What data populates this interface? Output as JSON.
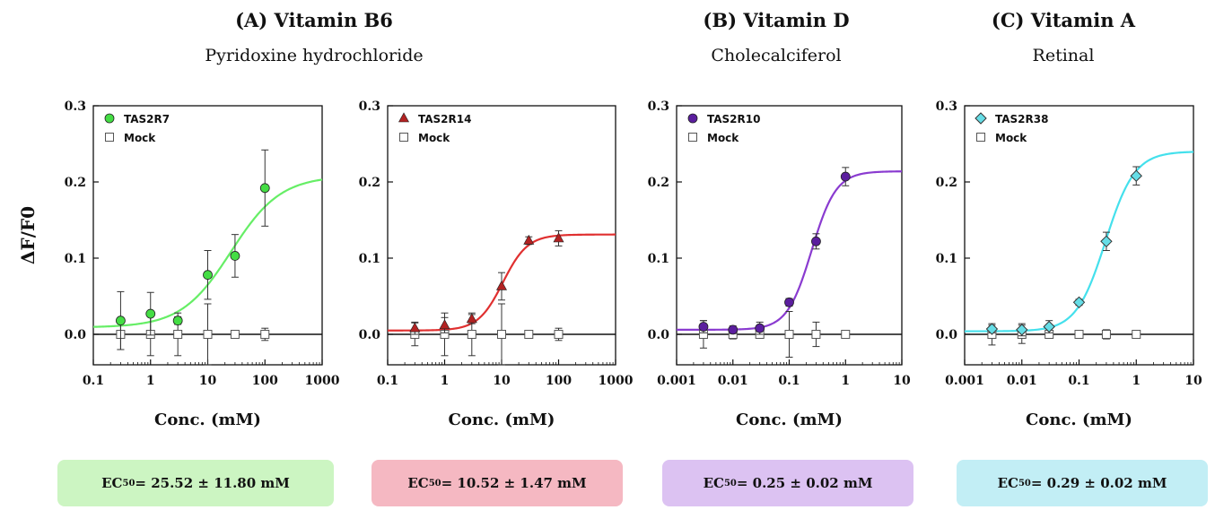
{
  "headers": [
    {
      "title": "(A) Vitamin B6",
      "subtitle": "Pyridoxine hydrochloride"
    },
    {
      "title": "(B) Vitamin D",
      "subtitle": "Cholecalciferol"
    },
    {
      "title": "(C) Vitamin A",
      "subtitle": "Retinal"
    }
  ],
  "ylabel": "ΔF/F0",
  "ec50": [
    {
      "prefix": "EC",
      "sub": "50",
      "text": " = 25.52 ± 11.80 mM",
      "color": "#ccf5c2"
    },
    {
      "prefix": "EC",
      "sub": "50",
      "text": " = 10.52 ± 1.47 mM",
      "color": "#f5b8c2"
    },
    {
      "prefix": "EC",
      "sub": "50",
      "text": " = 0.25 ± 0.02 mM",
      "color": "#dcc2f2"
    },
    {
      "prefix": "EC",
      "sub": "50",
      "text": " = 0.29 ± 0.02 mM",
      "color": "#c2eef5"
    }
  ],
  "chart_data": [
    {
      "type": "scatter",
      "xscale": "log",
      "xlim": [
        0.1,
        1000
      ],
      "ylim": [
        -0.04,
        0.3
      ],
      "xticks": [
        "0.1",
        "1",
        "10",
        "100",
        "1000"
      ],
      "yticks": [
        "0.0",
        "0.1",
        "0.2",
        "0.3"
      ],
      "xlabel": "Conc. (mM)",
      "ylabel": "ΔF/F0",
      "series": [
        {
          "name": "TAS2R7",
          "color": "#44dd44",
          "fit_color": "#66ee66",
          "marker": "circle",
          "x": [
            0.3,
            1,
            3,
            10,
            30,
            100
          ],
          "y": [
            0.018,
            0.027,
            0.018,
            0.078,
            0.103,
            0.192
          ],
          "err": [
            0.038,
            0.028,
            0.005,
            0.032,
            0.028,
            0.05
          ],
          "fit": {
            "bottom": 0.009,
            "top": 0.208,
            "ec50": 25.52,
            "hill": 1.0
          }
        },
        {
          "name": "Mock",
          "color": "#ffffff",
          "marker": "square",
          "x": [
            0.3,
            1,
            3,
            10,
            30,
            100
          ],
          "y": [
            0,
            0,
            0,
            0,
            0,
            0
          ],
          "err": [
            0.02,
            0.028,
            0.028,
            0.04,
            0.003,
            0.008
          ]
        }
      ]
    },
    {
      "type": "scatter",
      "xscale": "log",
      "xlim": [
        0.1,
        1000
      ],
      "ylim": [
        -0.04,
        0.3
      ],
      "xticks": [
        "0.1",
        "1",
        "10",
        "100",
        "1000"
      ],
      "yticks": [
        "0.0",
        "0.1",
        "0.2",
        "0.3"
      ],
      "xlabel": "Conc. (mM)",
      "series": [
        {
          "name": "TAS2R14",
          "color": "#b22222",
          "fit_color": "#e03030",
          "marker": "triangle",
          "x": [
            0.3,
            1,
            3,
            10,
            30,
            100
          ],
          "y": [
            0.008,
            0.012,
            0.02,
            0.063,
            0.123,
            0.126
          ],
          "err": [
            0.008,
            0.01,
            0.006,
            0.018,
            0.005,
            0.01
          ],
          "fit": {
            "bottom": 0.005,
            "top": 0.131,
            "ec50": 10.52,
            "hill": 2.0
          }
        },
        {
          "name": "Mock",
          "color": "#ffffff",
          "marker": "square",
          "x": [
            0.3,
            1,
            3,
            10,
            30,
            100
          ],
          "y": [
            0,
            0,
            0,
            0,
            0,
            0
          ],
          "err": [
            0.015,
            0.028,
            0.028,
            0.04,
            0.003,
            0.008
          ]
        }
      ]
    },
    {
      "type": "scatter",
      "xscale": "log",
      "xlim": [
        0.001,
        10
      ],
      "ylim": [
        -0.04,
        0.3
      ],
      "xticks": [
        "0.001",
        "0.01",
        "0.1",
        "1",
        "10"
      ],
      "yticks": [
        "0.0",
        "0.1",
        "0.2",
        "0.3"
      ],
      "xlabel": "Conc. (mM)",
      "series": [
        {
          "name": "TAS2R10",
          "color": "#5b1e9e",
          "fit_color": "#8a3bd0",
          "marker": "circle",
          "x": [
            0.003,
            0.01,
            0.03,
            0.1,
            0.3,
            1
          ],
          "y": [
            0.01,
            0.006,
            0.008,
            0.042,
            0.122,
            0.207
          ],
          "err": [
            0.008,
            0.005,
            0.008,
            0.005,
            0.01,
            0.012
          ],
          "fit": {
            "bottom": 0.006,
            "top": 0.214,
            "ec50": 0.25,
            "hill": 2.0
          }
        },
        {
          "name": "Mock",
          "color": "#ffffff",
          "marker": "square",
          "x": [
            0.003,
            0.01,
            0.03,
            0.1,
            0.3,
            1
          ],
          "y": [
            0,
            0,
            0,
            0,
            0,
            0
          ],
          "err": [
            0.018,
            0.006,
            0.003,
            0.03,
            0.016,
            0.003
          ]
        }
      ]
    },
    {
      "type": "scatter",
      "xscale": "log",
      "xlim": [
        0.001,
        10
      ],
      "ylim": [
        -0.04,
        0.3
      ],
      "xticks": [
        "0.001",
        "0.01",
        "0.1",
        "1",
        "10"
      ],
      "yticks": [
        "0.0",
        "0.1",
        "0.2",
        "0.3"
      ],
      "xlabel": "Conc. (mM)",
      "series": [
        {
          "name": "TAS2R38",
          "color": "#66dde6",
          "fit_color": "#44e0ec",
          "marker": "diamond",
          "x": [
            0.003,
            0.01,
            0.03,
            0.1,
            0.3,
            1
          ],
          "y": [
            0.007,
            0.006,
            0.01,
            0.042,
            0.122,
            0.208
          ],
          "err": [
            0.005,
            0.008,
            0.008,
            0.004,
            0.012,
            0.012
          ],
          "fit": {
            "bottom": 0.004,
            "top": 0.24,
            "ec50": 0.29,
            "hill": 1.7
          }
        },
        {
          "name": "Mock",
          "color": "#ffffff",
          "marker": "square",
          "x": [
            0.003,
            0.01,
            0.03,
            0.1,
            0.3,
            1
          ],
          "y": [
            0,
            0,
            0,
            0,
            0,
            0
          ],
          "err": [
            0.014,
            0.012,
            0.003,
            0.003,
            0.006,
            0.003
          ]
        }
      ]
    }
  ]
}
